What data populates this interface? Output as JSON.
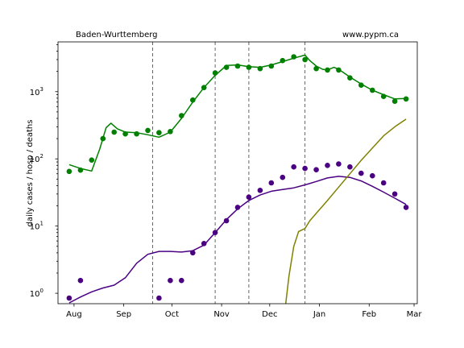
{
  "chart_data": {
    "type": "scatter",
    "title_left": "Baden-Wurttemberg",
    "title_right": "www.pypm.ca",
    "ylabel": "daily cases / hosp / deaths",
    "yscale": "log",
    "ylim": [
      0.7,
      5500
    ],
    "xlim": [
      "2020-07-22",
      "2021-03-03"
    ],
    "x_ticks": [
      {
        "date": "2020-08-01",
        "label": "Aug"
      },
      {
        "date": "2020-09-01",
        "label": "Sep"
      },
      {
        "date": "2020-10-01",
        "label": "Oct"
      },
      {
        "date": "2020-11-01",
        "label": "Nov"
      },
      {
        "date": "2020-12-01",
        "label": "Dec"
      },
      {
        "date": "2021-01-01",
        "label": "Jan"
      },
      {
        "date": "2021-02-01",
        "label": "Feb"
      },
      {
        "date": "2021-03-01",
        "label": "Mar"
      }
    ],
    "y_ticks": [
      {
        "value": 1,
        "base": "10",
        "exp": "0"
      },
      {
        "value": 10,
        "base": "10",
        "exp": "1"
      },
      {
        "value": 100,
        "base": "10",
        "exp": "2"
      },
      {
        "value": 1000,
        "base": "10",
        "exp": "3"
      }
    ],
    "vertical_markers": [
      "2020-09-19",
      "2020-10-28",
      "2020-11-18",
      "2020-12-23"
    ],
    "colors": {
      "cases": "#008000",
      "hosp": "#4b0082",
      "deaths": "#808000"
    },
    "series": [
      {
        "id": "cases_points",
        "kind": "points",
        "color": "#008000",
        "points": [
          [
            "2020-07-29",
            65
          ],
          [
            "2020-08-05",
            68
          ],
          [
            "2020-08-12",
            96
          ],
          [
            "2020-08-19",
            200
          ],
          [
            "2020-08-26",
            250
          ],
          [
            "2020-09-02",
            235
          ],
          [
            "2020-09-09",
            235
          ],
          [
            "2020-09-16",
            265
          ],
          [
            "2020-09-23",
            245
          ],
          [
            "2020-09-30",
            255
          ],
          [
            "2020-10-07",
            440
          ],
          [
            "2020-10-14",
            750
          ],
          [
            "2020-10-21",
            1150
          ],
          [
            "2020-10-28",
            1900
          ],
          [
            "2020-11-04",
            2300
          ],
          [
            "2020-11-11",
            2400
          ],
          [
            "2020-11-18",
            2300
          ],
          [
            "2020-11-25",
            2200
          ],
          [
            "2020-12-02",
            2400
          ],
          [
            "2020-12-09",
            2900
          ],
          [
            "2020-12-16",
            3300
          ],
          [
            "2020-12-23",
            3000
          ],
          [
            "2020-12-30",
            2200
          ],
          [
            "2021-01-06",
            2100
          ],
          [
            "2021-01-13",
            2100
          ],
          [
            "2021-01-20",
            1600
          ],
          [
            "2021-01-27",
            1250
          ],
          [
            "2021-02-03",
            1050
          ],
          [
            "2021-02-10",
            850
          ],
          [
            "2021-02-17",
            720
          ],
          [
            "2021-02-24",
            780
          ]
        ]
      },
      {
        "id": "cases_model",
        "kind": "line",
        "color": "#008000",
        "points": [
          [
            "2020-07-29",
            82
          ],
          [
            "2020-08-05",
            72
          ],
          [
            "2020-08-12",
            66
          ],
          [
            "2020-08-17",
            140
          ],
          [
            "2020-08-21",
            290
          ],
          [
            "2020-08-24",
            340
          ],
          [
            "2020-08-28",
            280
          ],
          [
            "2020-09-02",
            250
          ],
          [
            "2020-09-09",
            245
          ],
          [
            "2020-09-16",
            228
          ],
          [
            "2020-09-23",
            210
          ],
          [
            "2020-09-30",
            250
          ],
          [
            "2020-10-07",
            400
          ],
          [
            "2020-10-14",
            700
          ],
          [
            "2020-10-21",
            1150
          ],
          [
            "2020-10-28",
            1750
          ],
          [
            "2020-11-04",
            2450
          ],
          [
            "2020-11-11",
            2500
          ],
          [
            "2020-11-18",
            2350
          ],
          [
            "2020-11-25",
            2300
          ],
          [
            "2020-12-02",
            2500
          ],
          [
            "2020-12-09",
            2800
          ],
          [
            "2020-12-16",
            3150
          ],
          [
            "2020-12-23",
            3500
          ],
          [
            "2020-12-26",
            2900
          ],
          [
            "2020-12-30",
            2400
          ],
          [
            "2021-01-03",
            2150
          ],
          [
            "2021-01-06",
            2100
          ],
          [
            "2021-01-10",
            2300
          ],
          [
            "2021-01-13",
            2150
          ],
          [
            "2021-01-20",
            1650
          ],
          [
            "2021-01-27",
            1300
          ],
          [
            "2021-02-03",
            1050
          ],
          [
            "2021-02-10",
            900
          ],
          [
            "2021-02-17",
            780
          ],
          [
            "2021-02-24",
            790
          ]
        ]
      },
      {
        "id": "hosp_points",
        "kind": "points",
        "color": "#4b0082",
        "points": [
          [
            "2020-07-29",
            0.85
          ],
          [
            "2020-08-05",
            1.55
          ],
          [
            "2020-09-23",
            0.85
          ],
          [
            "2020-09-30",
            1.55
          ],
          [
            "2020-10-07",
            1.55
          ],
          [
            "2020-10-14",
            4.0
          ],
          [
            "2020-10-21",
            5.5
          ],
          [
            "2020-10-28",
            8.0
          ],
          [
            "2020-11-04",
            12
          ],
          [
            "2020-11-11",
            19
          ],
          [
            "2020-11-18",
            27
          ],
          [
            "2020-11-25",
            34
          ],
          [
            "2020-12-02",
            44
          ],
          [
            "2020-12-09",
            53
          ],
          [
            "2020-12-16",
            76
          ],
          [
            "2020-12-23",
            72
          ],
          [
            "2020-12-30",
            69
          ],
          [
            "2021-01-06",
            80
          ],
          [
            "2021-01-13",
            84
          ],
          [
            "2021-01-20",
            76
          ],
          [
            "2021-01-27",
            61
          ],
          [
            "2021-02-03",
            56
          ],
          [
            "2021-02-10",
            44
          ],
          [
            "2021-02-17",
            30
          ],
          [
            "2021-02-24",
            19
          ]
        ]
      },
      {
        "id": "hosp_model",
        "kind": "line",
        "color": "#4b0082",
        "points": [
          [
            "2020-07-29",
            0.72
          ],
          [
            "2020-08-05",
            0.88
          ],
          [
            "2020-08-12",
            1.05
          ],
          [
            "2020-08-19",
            1.2
          ],
          [
            "2020-08-26",
            1.32
          ],
          [
            "2020-09-02",
            1.7
          ],
          [
            "2020-09-09",
            2.8
          ],
          [
            "2020-09-16",
            3.8
          ],
          [
            "2020-09-23",
            4.2
          ],
          [
            "2020-09-30",
            4.2
          ],
          [
            "2020-10-07",
            4.1
          ],
          [
            "2020-10-14",
            4.3
          ],
          [
            "2020-10-21",
            5.2
          ],
          [
            "2020-10-28",
            8.0
          ],
          [
            "2020-11-04",
            12.5
          ],
          [
            "2020-11-11",
            18
          ],
          [
            "2020-11-18",
            24
          ],
          [
            "2020-11-25",
            29
          ],
          [
            "2020-12-02",
            33
          ],
          [
            "2020-12-09",
            35
          ],
          [
            "2020-12-16",
            37
          ],
          [
            "2020-12-23",
            41
          ],
          [
            "2020-12-30",
            46
          ],
          [
            "2021-01-06",
            52
          ],
          [
            "2021-01-13",
            55
          ],
          [
            "2021-01-20",
            53
          ],
          [
            "2021-01-27",
            47
          ],
          [
            "2021-02-03",
            39
          ],
          [
            "2021-02-10",
            32
          ],
          [
            "2021-02-17",
            26
          ],
          [
            "2021-02-24",
            21
          ]
        ]
      },
      {
        "id": "deaths_model",
        "kind": "line",
        "color": "#808000",
        "points": [
          [
            "2020-12-11",
            0.7
          ],
          [
            "2020-12-13",
            1.8
          ],
          [
            "2020-12-16",
            5.0
          ],
          [
            "2020-12-19",
            8.3
          ],
          [
            "2020-12-23",
            9.2
          ],
          [
            "2020-12-26",
            12
          ],
          [
            "2020-12-30",
            15.5
          ],
          [
            "2021-01-06",
            24
          ],
          [
            "2021-01-13",
            38
          ],
          [
            "2021-01-20",
            60
          ],
          [
            "2021-01-27",
            95
          ],
          [
            "2021-02-03",
            145
          ],
          [
            "2021-02-10",
            220
          ],
          [
            "2021-02-17",
            300
          ],
          [
            "2021-02-24",
            390
          ]
        ]
      }
    ]
  }
}
